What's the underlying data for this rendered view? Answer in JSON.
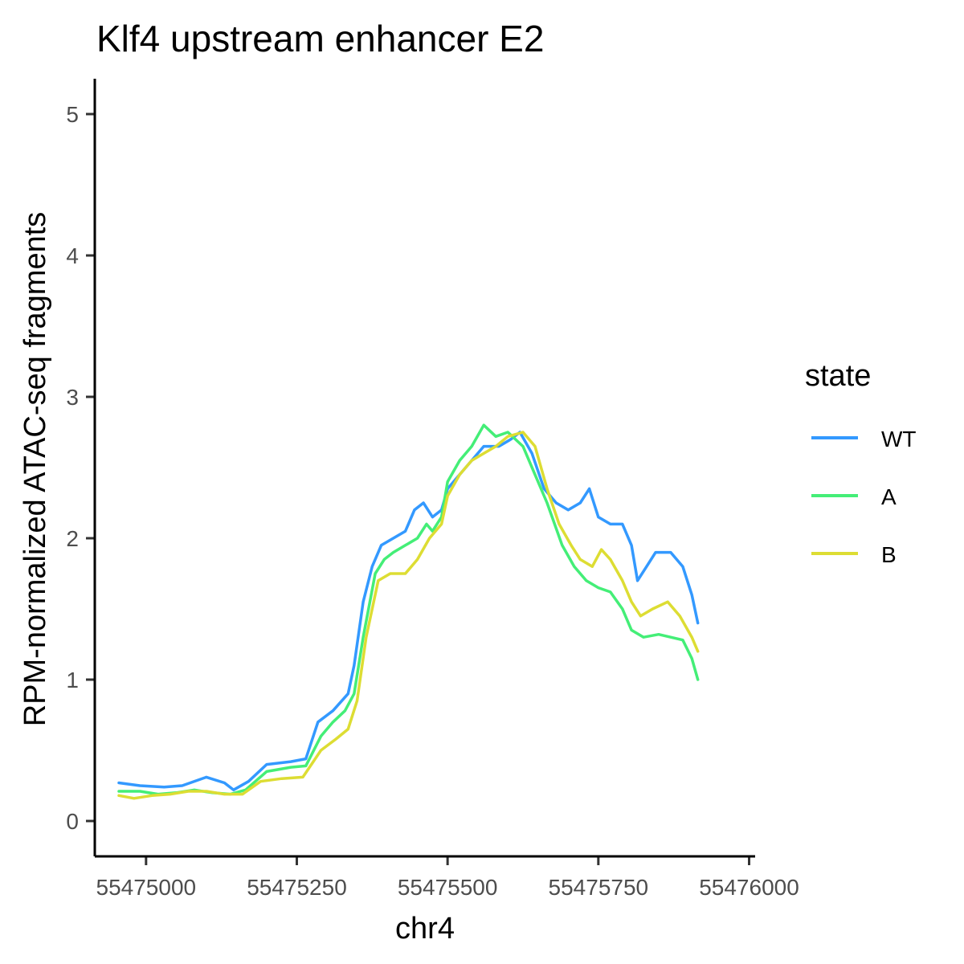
{
  "chart_data": {
    "type": "line",
    "title": "Klf4 upstream enhancer E2",
    "xlabel": "chr4",
    "ylabel": "RPM-normalized ATAC-seq fragments",
    "xlim": [
      54874915,
      55476010
    ],
    "ylim": [
      -0.25,
      5.25
    ],
    "x_ticks": [
      55475000,
      55475250,
      55475500,
      55475750,
      55476000
    ],
    "x_tick_labels": [
      "55475000",
      "55475250",
      "55475500",
      "55475750",
      "55476000"
    ],
    "y_ticks": [
      0,
      1,
      2,
      3,
      4,
      5
    ],
    "y_tick_labels": [
      "0",
      "1",
      "2",
      "3",
      "4",
      "5"
    ],
    "grid": false,
    "legend": {
      "title": "state",
      "position": "right"
    },
    "series": [
      {
        "name": "WT",
        "color": "#3399FF",
        "points": [
          [
            55474955,
            0.27
          ],
          [
            55474990,
            0.25
          ],
          [
            55475030,
            0.24
          ],
          [
            55475060,
            0.25
          ],
          [
            55475100,
            0.31
          ],
          [
            55475130,
            0.27
          ],
          [
            55475145,
            0.22
          ],
          [
            55475170,
            0.28
          ],
          [
            55475200,
            0.4
          ],
          [
            55475240,
            0.42
          ],
          [
            55475265,
            0.44
          ],
          [
            55475285,
            0.7
          ],
          [
            55475310,
            0.78
          ],
          [
            55475335,
            0.9
          ],
          [
            55475345,
            1.1
          ],
          [
            55475360,
            1.55
          ],
          [
            55475375,
            1.8
          ],
          [
            55475390,
            1.95
          ],
          [
            55475410,
            2.0
          ],
          [
            55475430,
            2.05
          ],
          [
            55475445,
            2.2
          ],
          [
            55475460,
            2.25
          ],
          [
            55475475,
            2.15
          ],
          [
            55475490,
            2.2
          ],
          [
            55475500,
            2.35
          ],
          [
            55475520,
            2.45
          ],
          [
            55475540,
            2.55
          ],
          [
            55475560,
            2.65
          ],
          [
            55475585,
            2.65
          ],
          [
            55475605,
            2.7
          ],
          [
            55475620,
            2.75
          ],
          [
            55475640,
            2.6
          ],
          [
            55475660,
            2.35
          ],
          [
            55475680,
            2.25
          ],
          [
            55475700,
            2.2
          ],
          [
            55475720,
            2.25
          ],
          [
            55475735,
            2.35
          ],
          [
            55475750,
            2.15
          ],
          [
            55475770,
            2.1
          ],
          [
            55475790,
            2.1
          ],
          [
            55475805,
            1.95
          ],
          [
            55475815,
            1.7
          ],
          [
            55475830,
            1.8
          ],
          [
            55475845,
            1.9
          ],
          [
            55475870,
            1.9
          ],
          [
            55475890,
            1.8
          ],
          [
            55475905,
            1.6
          ],
          [
            55475915,
            1.4
          ]
        ]
      },
      {
        "name": "A",
        "color": "#44EE77",
        "points": [
          [
            55474955,
            0.21
          ],
          [
            55474990,
            0.21
          ],
          [
            55475020,
            0.19
          ],
          [
            55475050,
            0.2
          ],
          [
            55475080,
            0.22
          ],
          [
            55475110,
            0.2
          ],
          [
            55475140,
            0.19
          ],
          [
            55475165,
            0.22
          ],
          [
            55475200,
            0.35
          ],
          [
            55475240,
            0.38
          ],
          [
            55475265,
            0.39
          ],
          [
            55475290,
            0.6
          ],
          [
            55475310,
            0.7
          ],
          [
            55475330,
            0.78
          ],
          [
            55475345,
            0.9
          ],
          [
            55475360,
            1.3
          ],
          [
            55475380,
            1.75
          ],
          [
            55475395,
            1.85
          ],
          [
            55475410,
            1.9
          ],
          [
            55475430,
            1.95
          ],
          [
            55475450,
            2.0
          ],
          [
            55475465,
            2.1
          ],
          [
            55475475,
            2.05
          ],
          [
            55475490,
            2.15
          ],
          [
            55475500,
            2.4
          ],
          [
            55475520,
            2.55
          ],
          [
            55475540,
            2.65
          ],
          [
            55475560,
            2.8
          ],
          [
            55475580,
            2.72
          ],
          [
            55475600,
            2.75
          ],
          [
            55475625,
            2.65
          ],
          [
            55475645,
            2.45
          ],
          [
            55475665,
            2.25
          ],
          [
            55475690,
            1.95
          ],
          [
            55475710,
            1.8
          ],
          [
            55475730,
            1.7
          ],
          [
            55475750,
            1.65
          ],
          [
            55475770,
            1.62
          ],
          [
            55475790,
            1.5
          ],
          [
            55475805,
            1.35
          ],
          [
            55475825,
            1.3
          ],
          [
            55475850,
            1.32
          ],
          [
            55475870,
            1.3
          ],
          [
            55475890,
            1.28
          ],
          [
            55475905,
            1.15
          ],
          [
            55475915,
            1.0
          ]
        ]
      },
      {
        "name": "B",
        "color": "#DDDD33",
        "points": [
          [
            55474955,
            0.18
          ],
          [
            55474980,
            0.16
          ],
          [
            55475010,
            0.18
          ],
          [
            55475040,
            0.19
          ],
          [
            55475070,
            0.21
          ],
          [
            55475100,
            0.21
          ],
          [
            55475130,
            0.19
          ],
          [
            55475160,
            0.19
          ],
          [
            55475190,
            0.28
          ],
          [
            55475225,
            0.3
          ],
          [
            55475260,
            0.31
          ],
          [
            55475290,
            0.5
          ],
          [
            55475315,
            0.58
          ],
          [
            55475335,
            0.65
          ],
          [
            55475350,
            0.85
          ],
          [
            55475365,
            1.3
          ],
          [
            55475385,
            1.7
          ],
          [
            55475405,
            1.75
          ],
          [
            55475430,
            1.75
          ],
          [
            55475450,
            1.85
          ],
          [
            55475470,
            2.0
          ],
          [
            55475490,
            2.1
          ],
          [
            55475500,
            2.3
          ],
          [
            55475520,
            2.45
          ],
          [
            55475540,
            2.55
          ],
          [
            55475560,
            2.6
          ],
          [
            55475580,
            2.65
          ],
          [
            55475600,
            2.72
          ],
          [
            55475625,
            2.75
          ],
          [
            55475645,
            2.65
          ],
          [
            55475665,
            2.35
          ],
          [
            55475685,
            2.1
          ],
          [
            55475705,
            1.95
          ],
          [
            55475720,
            1.85
          ],
          [
            55475740,
            1.8
          ],
          [
            55475755,
            1.92
          ],
          [
            55475770,
            1.85
          ],
          [
            55475790,
            1.7
          ],
          [
            55475805,
            1.55
          ],
          [
            55475820,
            1.45
          ],
          [
            55475840,
            1.5
          ],
          [
            55475865,
            1.55
          ],
          [
            55475885,
            1.45
          ],
          [
            55475905,
            1.3
          ],
          [
            55475915,
            1.2
          ]
        ]
      }
    ]
  }
}
